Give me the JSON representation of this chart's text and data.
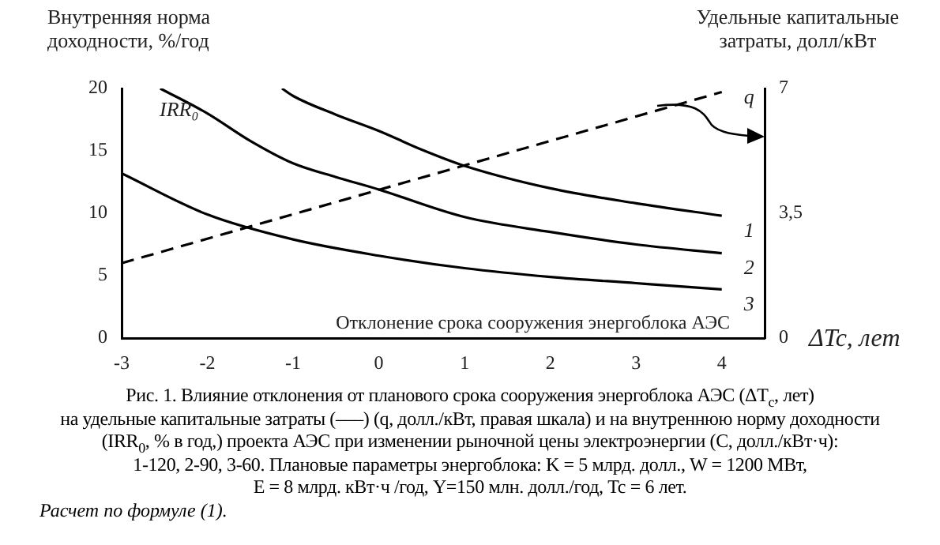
{
  "chart_data": {
    "type": "line",
    "ylabel": "Внутренняя норма доходности, %/год",
    "y2label": "Удельные капитальные затраты, долл/кВт",
    "xlabel": "Отклонение срока сооружения энергоблока АЭС",
    "xlim": [
      -3,
      4.5
    ],
    "xticks": [
      -3,
      -2,
      -1,
      0,
      1,
      2,
      3,
      4
    ],
    "ylim": [
      0,
      20
    ],
    "yticks": [
      0,
      5,
      10,
      15,
      20
    ],
    "y2lim": [
      0,
      7
    ],
    "y2ticks": [
      0,
      {
        "value": 3.5,
        "label": "3,5"
      },
      7
    ],
    "grid": false,
    "legend": false,
    "marker": "none",
    "series": [
      {
        "name": "1",
        "color": "#000000",
        "line_style": "solid",
        "x": [
          -1.13,
          -1,
          -0.5,
          0,
          0.5,
          1,
          2,
          3,
          4
        ],
        "values": [
          20,
          19.4,
          17.9,
          16.6,
          15.1,
          13.8,
          12,
          10.8,
          9.8
        ]
      },
      {
        "name": "2",
        "color": "#000000",
        "line_style": "solid",
        "x": [
          -2.55,
          -2,
          -1.5,
          -1,
          -0.5,
          0,
          1,
          2,
          3,
          4
        ],
        "values": [
          20,
          18,
          15.8,
          14,
          12.9,
          11.9,
          9.7,
          8.5,
          7.5,
          6.8
        ]
      },
      {
        "name": "3",
        "color": "#000000",
        "line_style": "solid",
        "x": [
          -3,
          -2,
          -1,
          0,
          1,
          2,
          3,
          4
        ],
        "values": [
          13.2,
          9.9,
          7.9,
          6.6,
          5.6,
          4.9,
          4.4,
          3.9
        ]
      },
      {
        "name": "q",
        "color": "#000000",
        "line_style": "dashed",
        "axis": "y2",
        "x": [
          -3,
          4
        ],
        "values": [
          2.1,
          6.9
        ]
      }
    ],
    "annotations": [
      "IRR₀",
      "ΔTc, лет",
      "Рис. 1. Влияние отклонения от планового срока сооружения энергоблока АЭС (ΔT$_{c}$, лет)\nна удельные капитальные затраты (–––) (q, долл./кВт, правая шкала) и на внутреннюю норму доходности\n(IRR$_{0}$, % в год,) проекта АЭС при изменении рыночной цены электроэнергии (C, долл./кВт·ч):\n1-120, 2-90, 3-60. Плановые параметры энергоблока: K = 5 млрд. долл., W = 1200 МВт,\nE = 8 млрд. кВт·ч /год, Y=150 млн. долл./год, Tc = 6 лет.",
      "Расчет по формуле (1)."
    ]
  }
}
